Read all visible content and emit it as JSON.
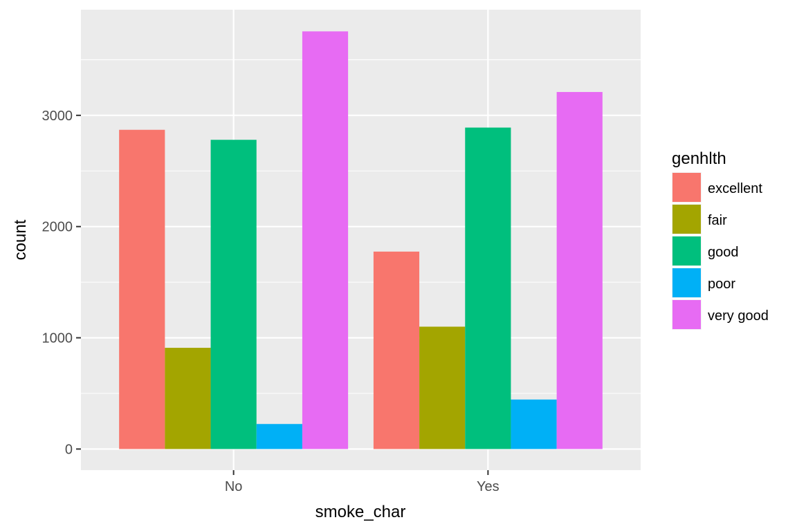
{
  "chart_data": {
    "type": "bar",
    "categories": [
      "No",
      "Yes"
    ],
    "series": [
      {
        "name": "excellent",
        "color": "#F8766D",
        "values": [
          2870,
          1775
        ]
      },
      {
        "name": "fair",
        "color": "#A3A500",
        "values": [
          910,
          1100
        ]
      },
      {
        "name": "good",
        "color": "#00BF7D",
        "values": [
          2780,
          2890
        ]
      },
      {
        "name": "poor",
        "color": "#00B0F6",
        "values": [
          225,
          445
        ]
      },
      {
        "name": "very good",
        "color": "#E76BF3",
        "values": [
          3755,
          3210
        ]
      }
    ],
    "xlabel": "smoke_char",
    "ylabel": "count",
    "yticks": [
      0,
      1000,
      2000,
      3000
    ],
    "ylim": [
      -190,
      3950
    ],
    "legend_title": "genhlth",
    "legend_position": "right",
    "grid": true,
    "panel_background": "#EBEBEB",
    "grid_color": "#FFFFFF"
  }
}
